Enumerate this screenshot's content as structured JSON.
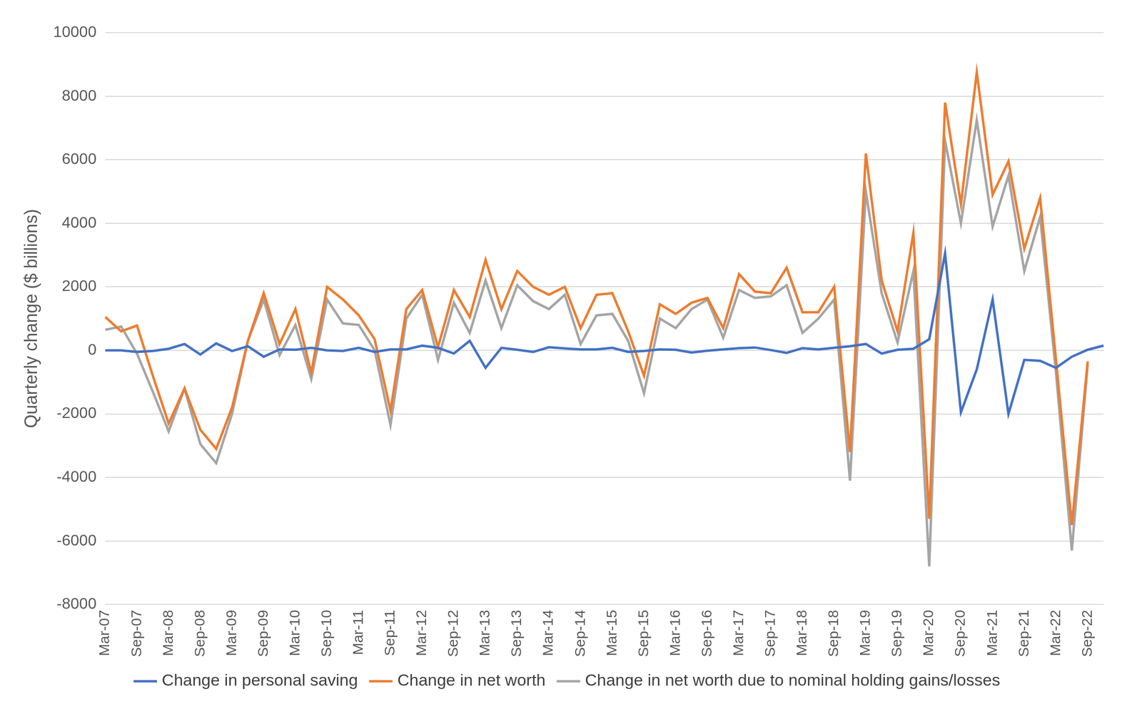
{
  "chart_data": {
    "type": "line",
    "ylabel": "Quarterly change ($ billions)",
    "categories": [
      "Mar-07",
      null,
      "Sep-07",
      null,
      "Mar-08",
      null,
      "Sep-08",
      null,
      "Mar-09",
      null,
      "Sep-09",
      null,
      "Mar-10",
      null,
      "Sep-10",
      null,
      "Mar-11",
      null,
      "Sep-11",
      null,
      "Mar-12",
      null,
      "Sep-12",
      null,
      "Mar-13",
      null,
      "Sep-13",
      null,
      "Mar-14",
      null,
      "Sep-14",
      null,
      "Mar-15",
      null,
      "Sep-15",
      null,
      "Mar-16",
      null,
      "Sep-16",
      null,
      "Mar-17",
      null,
      "Sep-17",
      null,
      "Mar-18",
      null,
      "Sep-18",
      null,
      "Mar-19",
      null,
      "Sep-19",
      null,
      "Mar-20",
      null,
      "Sep-20",
      null,
      "Mar-21",
      null,
      "Sep-21",
      null,
      "Mar-22",
      null,
      "Sep-22",
      null
    ],
    "series": [
      {
        "name": "Change in personal saving",
        "color": "#4472c4",
        "values": [
          0,
          0,
          -50,
          -20,
          50,
          200,
          -130,
          220,
          -20,
          130,
          -200,
          30,
          20,
          80,
          0,
          -20,
          80,
          -50,
          30,
          30,
          150,
          80,
          -100,
          300,
          -550,
          80,
          20,
          -50,
          100,
          60,
          30,
          30,
          80,
          -50,
          -20,
          30,
          20,
          -70,
          -10,
          30,
          70,
          90,
          10,
          -80,
          70,
          30,
          80,
          130,
          200,
          -100,
          20,
          50,
          350,
          3050,
          -1950,
          -600,
          1600,
          -2000,
          -300,
          -330,
          -550,
          -200,
          20,
          150
        ]
      },
      {
        "name": "Change in net worth",
        "color": "#ed7d31",
        "values": [
          1050,
          600,
          780,
          -800,
          -2300,
          -1200,
          -2500,
          -3100,
          -1800,
          300,
          1800,
          200,
          1300,
          -700,
          2000,
          1600,
          1100,
          350,
          -1900,
          1300,
          1900,
          100,
          1900,
          1050,
          2850,
          1300,
          2500,
          2000,
          1750,
          2000,
          700,
          1750,
          1800,
          600,
          -800,
          1450,
          1150,
          1500,
          1650,
          700,
          2400,
          1850,
          1800,
          2600,
          1200,
          1200,
          2000,
          -3200,
          6200,
          2200,
          600,
          3700,
          -5300,
          7800,
          4600,
          8750,
          4900,
          5950,
          3200,
          4800,
          -300,
          -5500,
          -350,
          null
        ]
      },
      {
        "name": "Change in net worth due to nominal holding gains/losses",
        "color": "#a5a5a5",
        "values": [
          650,
          750,
          -100,
          -1300,
          -2550,
          -1200,
          -2950,
          -3550,
          -2000,
          300,
          1600,
          -150,
          800,
          -900,
          1600,
          850,
          800,
          0,
          -2350,
          1000,
          1750,
          -300,
          1500,
          550,
          2200,
          700,
          2050,
          1550,
          1300,
          1750,
          200,
          1100,
          1150,
          300,
          -1350,
          1000,
          700,
          1300,
          1600,
          400,
          1900,
          1650,
          1700,
          2050,
          550,
          1000,
          1600,
          -4100,
          5000,
          1800,
          250,
          2500,
          -6800,
          6600,
          4000,
          7250,
          3900,
          5500,
          2500,
          4200,
          -700,
          -6300,
          -450,
          null
        ]
      }
    ],
    "ylim": [
      -8000,
      10000
    ],
    "yticks": [
      -8000,
      -6000,
      -4000,
      -2000,
      0,
      2000,
      4000,
      6000,
      8000,
      10000
    ],
    "grid": true,
    "legend": "bottom"
  }
}
